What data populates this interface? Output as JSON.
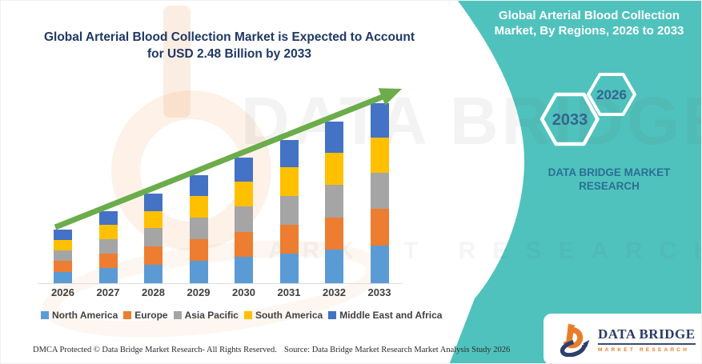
{
  "header": {
    "title_line1": "Global Arterial Blood Collection Market is Expected to Account",
    "title_line2": "for USD 2.48 Billion by 2033"
  },
  "sidebar": {
    "heading": "Global Arterial Blood Collection Market, By Regions, 2026 to 2033",
    "hexagons": [
      "2033",
      "2026"
    ],
    "brand_text": "DATA BRIDGE MARKET RESEARCH",
    "accent_color": "#50C2BD",
    "hex_text_color": "#34658F",
    "brand_text_color": "#2A6F96"
  },
  "logo_card": {
    "name": "DATA BRIDGE",
    "tagline": "MARKET RESEARCH",
    "glyph": "data-bridge-logo",
    "navy": "#2E3F6E",
    "orange": "#E87D2B"
  },
  "watermark": {
    "big_text": "DATA BRIDGE",
    "letters_row": "MARKET RESEARCH"
  },
  "footer": {
    "left": "DMCA Protected © Data Bridge Market Research-  All Rights Reserved.",
    "right": "Source: Data Bridge Market Research  Market Analysis Study 2026"
  },
  "chart_data": {
    "type": "bar",
    "stacked": true,
    "title": "Global Arterial Blood Collection Market is Expected to Account for USD 2.48 Billion by 2033",
    "unit": "USD Billion",
    "xlabel": "",
    "ylabel": "",
    "ylim": [
      0,
      2.6
    ],
    "grid": false,
    "legend_position": "bottom",
    "categories": [
      "2026",
      "2027",
      "2028",
      "2029",
      "2030",
      "2031",
      "2032",
      "2033"
    ],
    "series": [
      {
        "name": "North America",
        "color": "#5B9BD5",
        "values": [
          0.16,
          0.21,
          0.26,
          0.31,
          0.36,
          0.41,
          0.46,
          0.52
        ]
      },
      {
        "name": "Europe",
        "color": "#ED7D31",
        "values": [
          0.15,
          0.2,
          0.25,
          0.3,
          0.35,
          0.4,
          0.45,
          0.5
        ]
      },
      {
        "name": "Asia Pacific",
        "color": "#A5A5A5",
        "values": [
          0.14,
          0.2,
          0.25,
          0.3,
          0.35,
          0.4,
          0.45,
          0.5
        ]
      },
      {
        "name": "South America",
        "color": "#FFC000",
        "values": [
          0.15,
          0.19,
          0.24,
          0.29,
          0.34,
          0.39,
          0.44,
          0.49
        ]
      },
      {
        "name": "Middle East and Africa",
        "color": "#4472C4",
        "values": [
          0.14,
          0.19,
          0.24,
          0.29,
          0.33,
          0.38,
          0.43,
          0.47
        ]
      }
    ],
    "totals": [
      0.74,
      0.99,
      1.24,
      1.49,
      1.73,
      1.98,
      2.23,
      2.48
    ],
    "annotations": {
      "trend_arrow": true,
      "arrow_color": "#6BAC4B"
    }
  }
}
